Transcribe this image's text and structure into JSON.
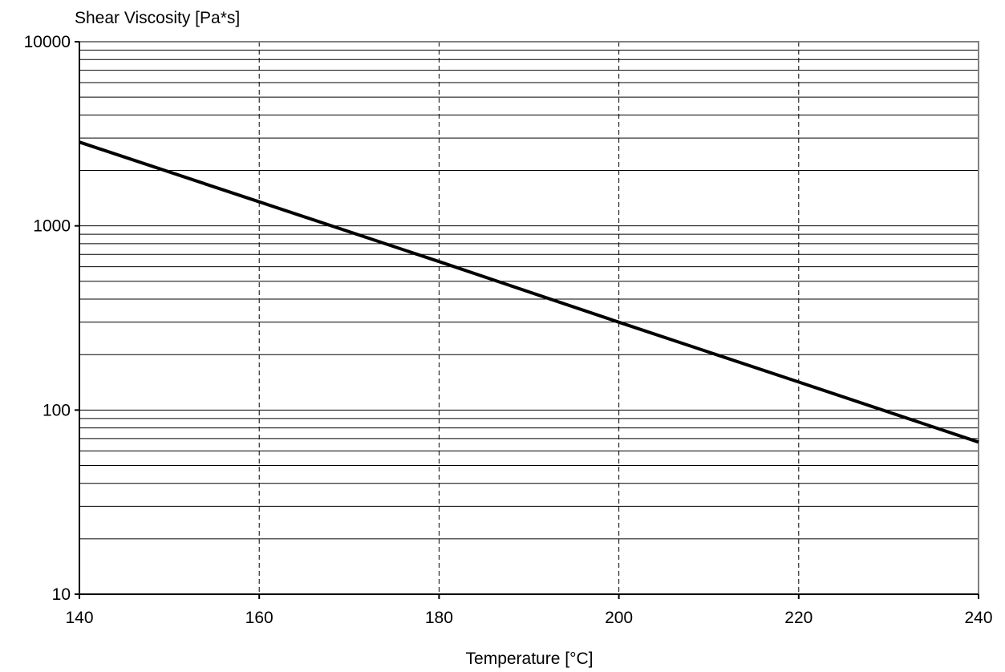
{
  "chart_data": {
    "type": "line",
    "title": "",
    "ylabel": "Shear Viscosity  [Pa*s]",
    "xlabel": "Temperature  [°C]",
    "xlim": [
      140,
      240
    ],
    "ylim": [
      10,
      10000
    ],
    "yscale": "log",
    "x_ticks": [
      140,
      160,
      180,
      200,
      220,
      240
    ],
    "y_ticks": [
      10,
      100,
      1000,
      10000
    ],
    "grid": {
      "x_major": "dashed",
      "y_major_minor": "solid"
    },
    "legend": "none",
    "series": [
      {
        "x": [
          140,
          160,
          180,
          200,
          220,
          240
        ],
        "y": [
          2850,
          1350,
          640,
          300,
          142,
          67
        ]
      }
    ],
    "colors": {
      "line": "#000000",
      "grid": "#000000",
      "frame": "#808080"
    }
  }
}
